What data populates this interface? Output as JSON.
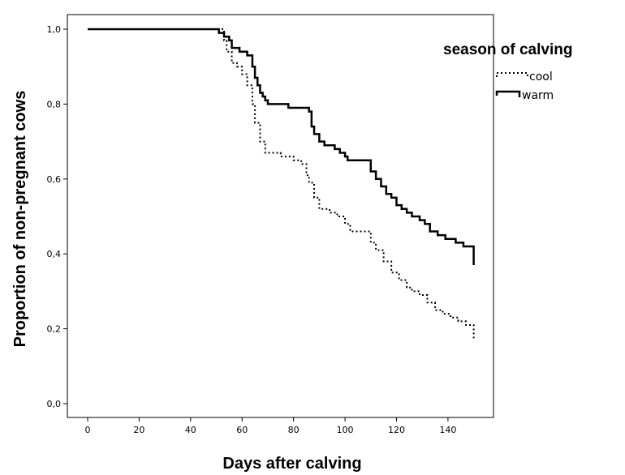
{
  "chart_data": {
    "type": "line",
    "subtype": "kaplan-meier-step",
    "xlabel": "Days after calving",
    "ylabel": "Proportion of non-pregnant cows",
    "xlim": [
      0,
      150
    ],
    "ylim": [
      0,
      1
    ],
    "x_ticks": [
      0,
      20,
      40,
      60,
      80,
      100,
      120,
      140
    ],
    "y_ticks": [
      0,
      0.2,
      0.4,
      0.6,
      0.8,
      1.0
    ],
    "x_tick_labels": [
      "0",
      "20",
      "40",
      "60",
      "80",
      "100",
      "120",
      "140"
    ],
    "y_tick_labels": [
      "0,0",
      "0,2",
      "0,4",
      "0,6",
      "0,8",
      "1,0"
    ],
    "grid": false,
    "legend": {
      "title": "season of calving",
      "position": "top-right"
    },
    "series": [
      {
        "name": "cool",
        "style": "dotted",
        "color": "#000000",
        "points": [
          [
            0,
            1.0
          ],
          [
            50,
            1.0
          ],
          [
            53,
            0.97
          ],
          [
            54,
            0.94
          ],
          [
            56,
            0.91
          ],
          [
            58,
            0.9
          ],
          [
            60,
            0.88
          ],
          [
            62,
            0.85
          ],
          [
            64,
            0.8
          ],
          [
            65,
            0.75
          ],
          [
            67,
            0.7
          ],
          [
            69,
            0.67
          ],
          [
            75,
            0.66
          ],
          [
            80,
            0.65
          ],
          [
            83,
            0.64
          ],
          [
            85,
            0.61
          ],
          [
            86,
            0.59
          ],
          [
            88,
            0.55
          ],
          [
            90,
            0.52
          ],
          [
            94,
            0.51
          ],
          [
            97,
            0.5
          ],
          [
            100,
            0.48
          ],
          [
            102,
            0.46
          ],
          [
            108,
            0.46
          ],
          [
            110,
            0.43
          ],
          [
            112,
            0.41
          ],
          [
            115,
            0.38
          ],
          [
            118,
            0.35
          ],
          [
            121,
            0.33
          ],
          [
            124,
            0.31
          ],
          [
            126,
            0.3
          ],
          [
            129,
            0.29
          ],
          [
            132,
            0.27
          ],
          [
            135,
            0.25
          ],
          [
            138,
            0.24
          ],
          [
            141,
            0.23
          ],
          [
            144,
            0.22
          ],
          [
            147,
            0.21
          ],
          [
            150,
            0.21
          ],
          [
            150,
            0.17
          ]
        ]
      },
      {
        "name": "warm",
        "style": "solid",
        "color": "#000000",
        "points": [
          [
            0,
            1.0
          ],
          [
            50,
            1.0
          ],
          [
            51,
            0.99
          ],
          [
            53,
            0.98
          ],
          [
            55,
            0.97
          ],
          [
            56,
            0.95
          ],
          [
            59,
            0.94
          ],
          [
            62,
            0.93
          ],
          [
            64,
            0.9
          ],
          [
            65,
            0.87
          ],
          [
            66,
            0.85
          ],
          [
            67,
            0.83
          ],
          [
            68,
            0.82
          ],
          [
            69,
            0.81
          ],
          [
            70,
            0.8
          ],
          [
            77,
            0.8
          ],
          [
            78,
            0.79
          ],
          [
            85,
            0.79
          ],
          [
            86,
            0.78
          ],
          [
            87,
            0.74
          ],
          [
            88,
            0.72
          ],
          [
            90,
            0.7
          ],
          [
            92,
            0.69
          ],
          [
            96,
            0.68
          ],
          [
            98,
            0.67
          ],
          [
            100,
            0.66
          ],
          [
            101,
            0.65
          ],
          [
            108,
            0.65
          ],
          [
            110,
            0.62
          ],
          [
            112,
            0.6
          ],
          [
            114,
            0.58
          ],
          [
            116,
            0.56
          ],
          [
            118,
            0.55
          ],
          [
            120,
            0.53
          ],
          [
            122,
            0.52
          ],
          [
            124,
            0.51
          ],
          [
            126,
            0.5
          ],
          [
            129,
            0.49
          ],
          [
            131,
            0.48
          ],
          [
            133,
            0.46
          ],
          [
            136,
            0.45
          ],
          [
            139,
            0.44
          ],
          [
            143,
            0.43
          ],
          [
            146,
            0.42
          ],
          [
            150,
            0.42
          ],
          [
            150,
            0.37
          ]
        ]
      }
    ]
  }
}
